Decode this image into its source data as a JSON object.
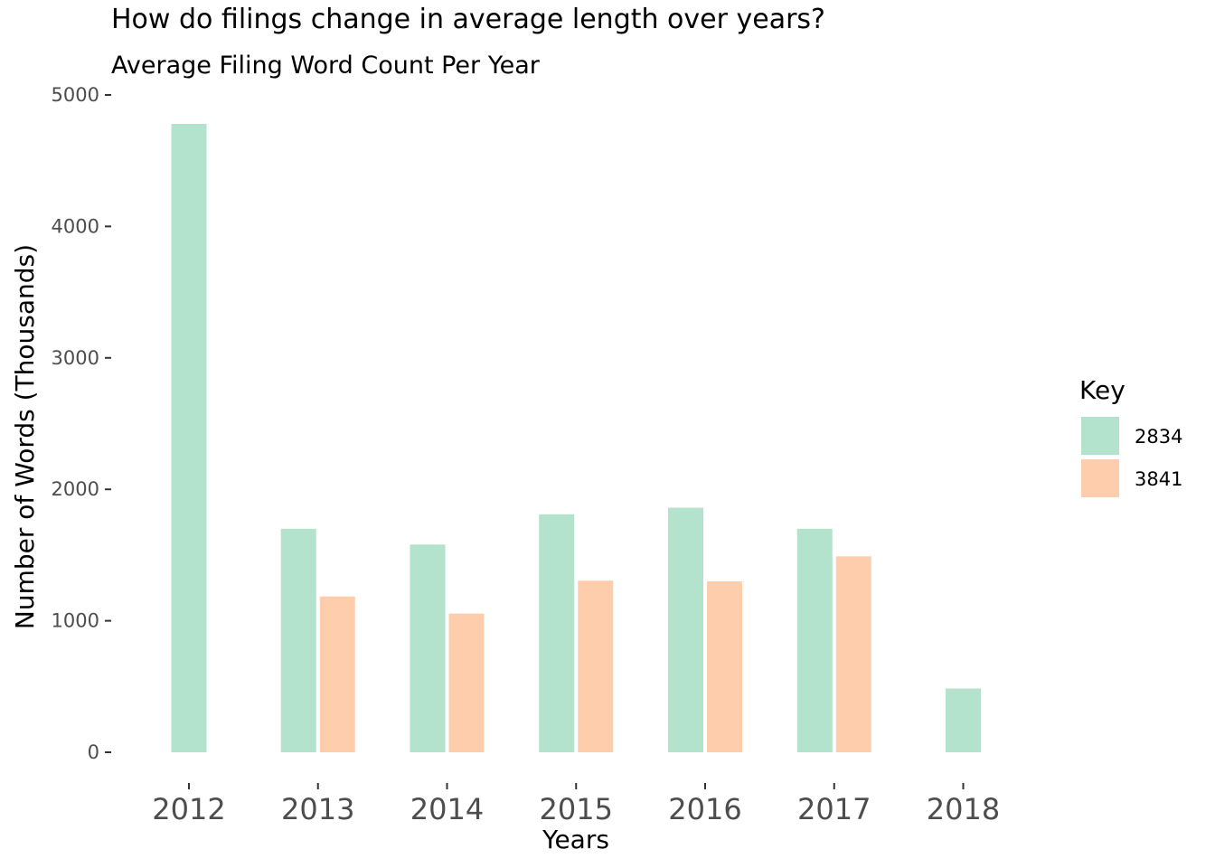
{
  "chart_data": {
    "type": "bar",
    "title": "How do filings change in average length over years?",
    "subtitle": "Average Filing Word Count Per Year",
    "xlabel": "Years",
    "ylabel": "Number of Words (Thousands)",
    "categories": [
      "2012",
      "2013",
      "2014",
      "2015",
      "2016",
      "2017",
      "2018"
    ],
    "yticks": [
      "0",
      "1000",
      "2000",
      "3000",
      "4000",
      "5000"
    ],
    "ylim": [
      0,
      5000
    ],
    "grid": false,
    "legend": {
      "title": "Key",
      "position": "right"
    },
    "series": [
      {
        "name": "2834",
        "color": "#b3e2cd",
        "values": [
          4780,
          1700,
          1580,
          1810,
          1860,
          1700,
          485
        ]
      },
      {
        "name": "3841",
        "color": "#fdcdac",
        "values": [
          null,
          1185,
          1055,
          1305,
          1300,
          1490,
          null
        ]
      }
    ]
  }
}
